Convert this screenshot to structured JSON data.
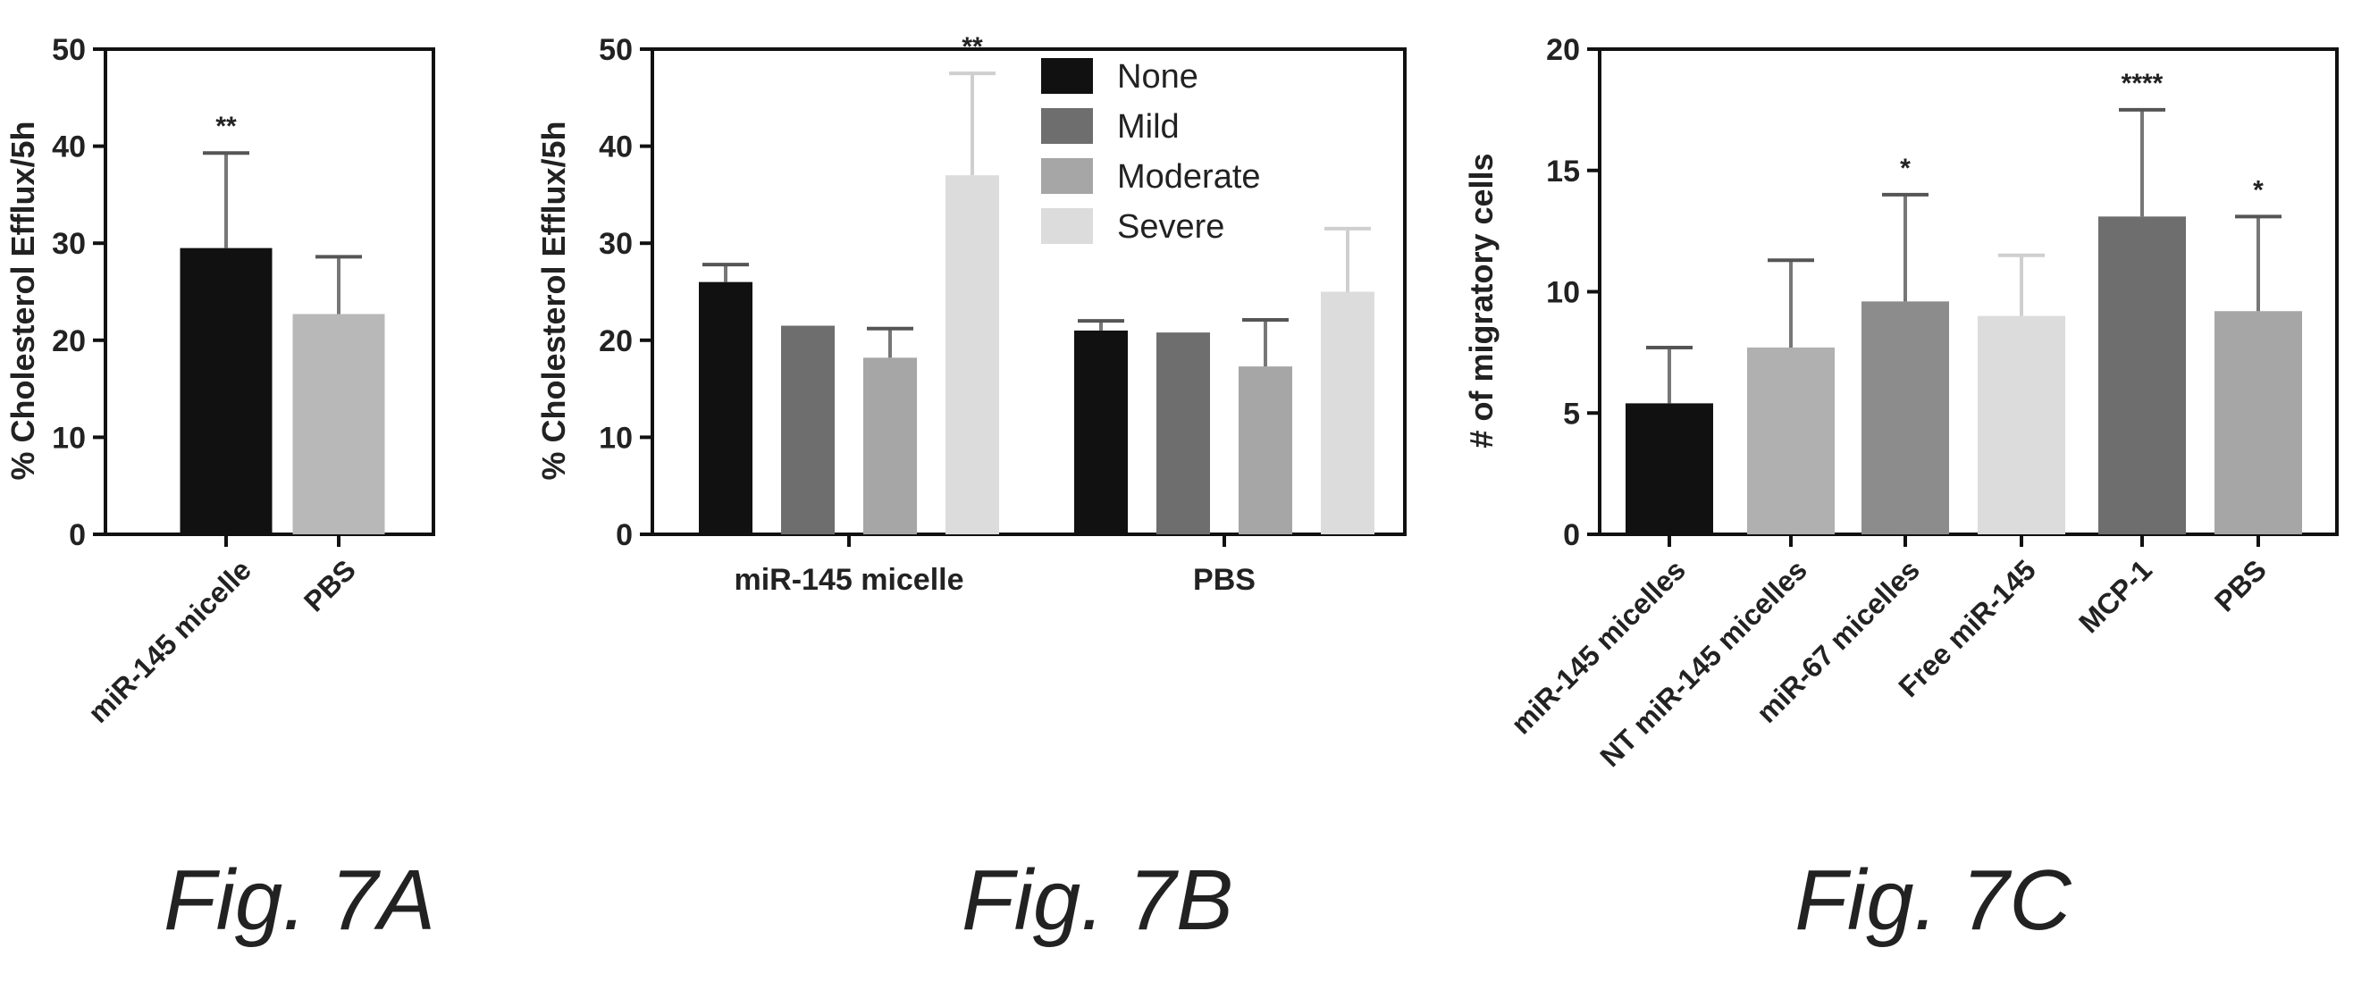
{
  "chart_data": [
    {
      "id": "7A",
      "type": "bar",
      "caption": "Fig. 7A",
      "ylabel": "% Cholesterol Efflux/5h",
      "ylim": [
        0,
        50
      ],
      "yticks": [
        0,
        10,
        20,
        30,
        40,
        50
      ],
      "categories": [
        "miR-145 micelle",
        "PBS"
      ],
      "values": [
        29.5,
        22.7
      ],
      "errors": [
        9.8,
        5.9
      ],
      "significance": [
        "**",
        ""
      ],
      "colors": [
        "#111111",
        "#b8b8b8"
      ]
    },
    {
      "id": "7B",
      "type": "bar",
      "caption": "Fig. 7B",
      "ylabel": "% Cholesterol Efflux/5h",
      "ylim": [
        0,
        50
      ],
      "yticks": [
        0,
        10,
        20,
        30,
        40,
        50
      ],
      "categories": [
        "miR-145 micelle",
        "PBS"
      ],
      "legend_position": "top-right",
      "series": [
        {
          "name": "None",
          "color": "#111111",
          "values": [
            26.0,
            21.0
          ],
          "errors": [
            1.8,
            1.0
          ],
          "significance": [
            "",
            ""
          ]
        },
        {
          "name": "Mild",
          "color": "#6e6e6e",
          "values": [
            21.5,
            20.8
          ],
          "errors": [
            0.0,
            0.0
          ],
          "significance": [
            "",
            ""
          ]
        },
        {
          "name": "Moderate",
          "color": "#a6a6a6",
          "values": [
            18.2,
            17.3
          ],
          "errors": [
            3.0,
            4.8
          ],
          "significance": [
            "",
            ""
          ]
        },
        {
          "name": "Severe",
          "color": "#dcdcdc",
          "values": [
            37.0,
            25.0
          ],
          "errors": [
            10.5,
            6.5
          ],
          "significance": [
            "**",
            ""
          ]
        }
      ]
    },
    {
      "id": "7C",
      "type": "bar",
      "caption": "Fig. 7C",
      "ylabel": "# of migratory cells",
      "ylim": [
        0,
        20
      ],
      "yticks": [
        0,
        5,
        10,
        15,
        20
      ],
      "categories": [
        "miR-145 micelles",
        "NT miR-145 micelles",
        "miR-67 micelles",
        "Free miR-145",
        "MCP-1",
        "PBS"
      ],
      "values": [
        5.4,
        7.7,
        9.6,
        9.0,
        13.1,
        9.2
      ],
      "errors": [
        2.3,
        3.6,
        4.4,
        2.5,
        4.4,
        3.9
      ],
      "significance": [
        "",
        "",
        "*",
        "",
        "****",
        "*"
      ],
      "colors": [
        "#111111",
        "#b0b0b0",
        "#8c8c8c",
        "#dcdcdc",
        "#6e6e6e",
        "#a6a6a6"
      ]
    }
  ]
}
